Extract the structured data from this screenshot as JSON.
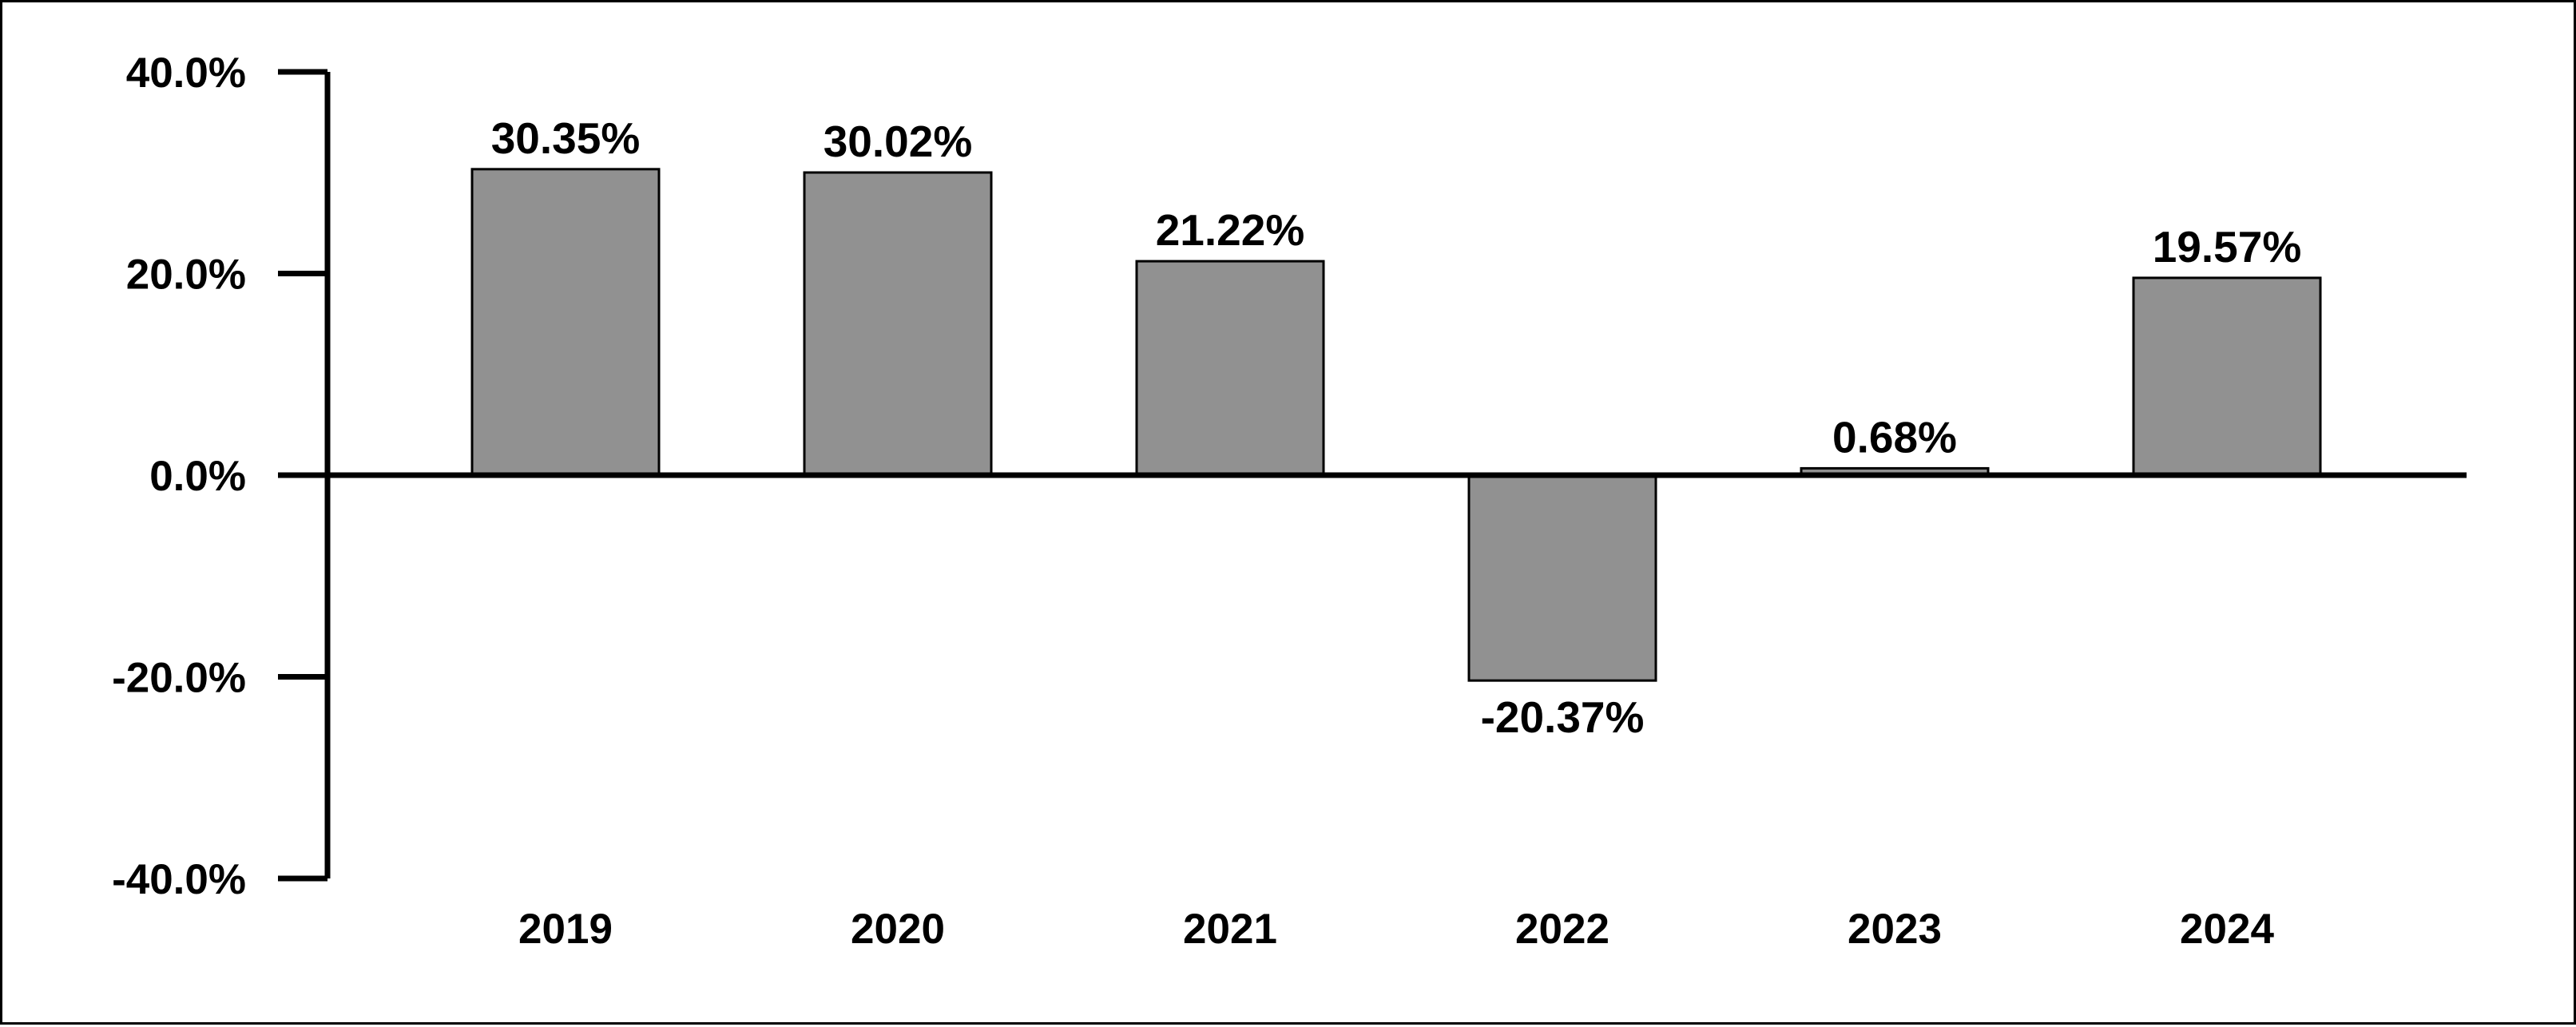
{
  "chart_data": {
    "type": "bar",
    "title": "",
    "xlabel": "",
    "ylabel": "",
    "categories": [
      "2019",
      "2020",
      "2021",
      "2022",
      "2023",
      "2024"
    ],
    "values": [
      30.35,
      30.02,
      21.22,
      -20.37,
      0.68,
      19.57
    ],
    "data_labels": [
      "30.35%",
      "30.02%",
      "21.22%",
      "-20.37%",
      "0.68%",
      "19.57%"
    ],
    "ylim": [
      -40,
      40
    ],
    "y_ticks": [
      40,
      20,
      0,
      -20,
      -40
    ],
    "y_tick_labels": [
      "40.0%",
      "20.0%",
      "0.0%",
      "-20.0%",
      "-40.0%"
    ],
    "grid": false,
    "legend": "none",
    "colors": {
      "bar_fill": "#919191",
      "bar_stroke": "#000000",
      "axis": "#000000",
      "text": "#000000",
      "background": "#ffffff"
    }
  }
}
